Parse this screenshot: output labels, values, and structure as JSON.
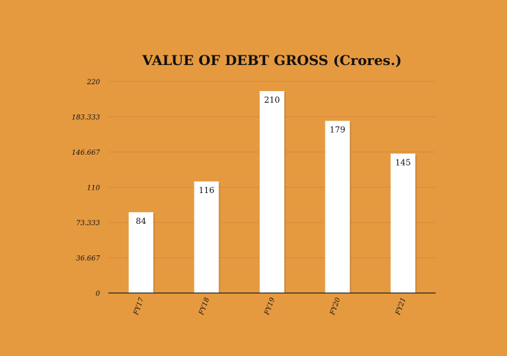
{
  "colors": {
    "background": "#E69A40",
    "bar": "#FFFFFF",
    "grid": "#D18C3C",
    "axis": "#1a1a1a",
    "text": "#111111"
  },
  "chart_data": {
    "type": "bar",
    "title": "VALUE OF DEBT GROSS (Crores.)",
    "categories": [
      "FY17",
      "FY18",
      "FY19",
      "FY20",
      "FY21"
    ],
    "values": [
      84,
      116,
      210,
      179,
      145
    ],
    "data_labels": [
      "84",
      "116",
      "210",
      "179",
      "145"
    ],
    "yticks": [
      0,
      36.667,
      73.333,
      110,
      146.667,
      183.333,
      220
    ],
    "ytick_labels": [
      "0",
      "36.667",
      "73.333",
      "110",
      "146.667",
      "183.333",
      "220"
    ],
    "ylim": [
      0,
      220
    ],
    "grid": true,
    "legend": "none"
  }
}
